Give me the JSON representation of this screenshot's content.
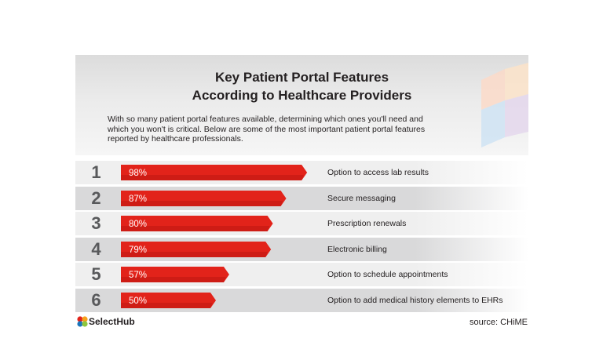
{
  "title_line1": "Key Patient Portal Features",
  "title_line2": "According to Healthcare Providers",
  "intro_line1": "With so many patient portal features available, determining which ones you'll need and",
  "intro_line2": "which you won't is critical. Below are some of the most important patient portal features",
  "intro_line3": "reported by healthcare professionals.",
  "colors": {
    "bar": "#e2231a",
    "bar_dark": "#b5140f",
    "row_light": "#efefef",
    "row_dark": "#d9d9da",
    "rank_text": "#58595b"
  },
  "chart_data": {
    "type": "bar",
    "orientation": "horizontal",
    "categories": [
      "Option to access lab results",
      "Secure messaging",
      "Prescription renewals",
      "Electronic billing",
      "Option to schedule appointments",
      "Option to add medical history elements to EHRs"
    ],
    "ranks": [
      "1",
      "2",
      "3",
      "4",
      "5",
      "6"
    ],
    "values": [
      98,
      87,
      80,
      79,
      57,
      50
    ],
    "value_labels": [
      "98%",
      "87%",
      "80%",
      "79%",
      "57%",
      "50%"
    ],
    "unit": "%",
    "xlim": [
      0,
      100
    ]
  },
  "brand": "SelectHub",
  "source": "source: CHiME"
}
